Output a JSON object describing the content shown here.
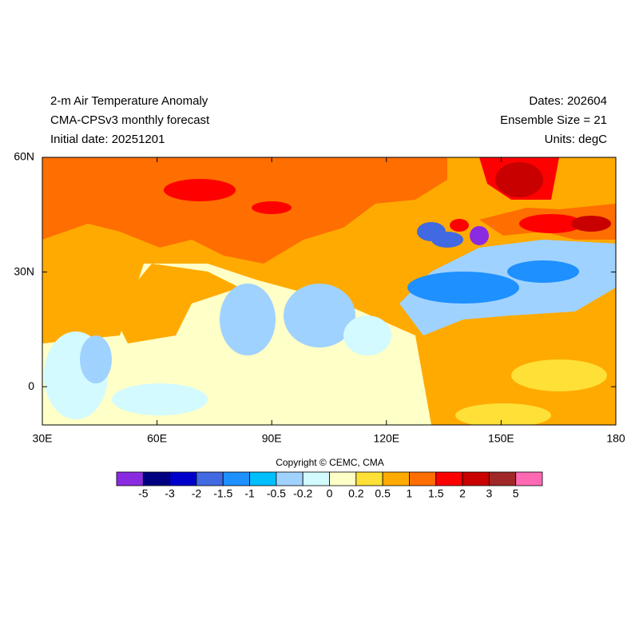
{
  "header": {
    "left": [
      "2-m Air Temperature Anomaly",
      "CMA-CPSv3 monthly forecast",
      "Initial date: 20251201"
    ],
    "right": [
      "Dates: 202604",
      "Ensemble Size = 21",
      "Units: degC"
    ]
  },
  "map": {
    "xlim": [
      30,
      180
    ],
    "ylim": [
      -10,
      60
    ],
    "xticks": [
      {
        "value": 30,
        "label": "30E"
      },
      {
        "value": 60,
        "label": "60E"
      },
      {
        "value": 90,
        "label": "90E"
      },
      {
        "value": 120,
        "label": "120E"
      },
      {
        "value": 150,
        "label": "150E"
      },
      180
    ],
    "yticks": [
      {
        "value": 60,
        "label": "60N"
      },
      {
        "value": 30,
        "label": "30N"
      },
      0
    ]
  },
  "copyright": "Copyright © CEMC, CMA",
  "colorbar": {
    "levels": [
      -5,
      -3,
      -2,
      -1.5,
      -1,
      -0.5,
      -0.2,
      0,
      0.2,
      0.5,
      1,
      1.5,
      2,
      3,
      5
    ],
    "colors": [
      "#8a2be2",
      "#000080",
      "#0000cd",
      "#4169e1",
      "#1e90ff",
      "#00bfff",
      "#a0d2ff",
      "#d2faff",
      "#ffffc8",
      "#ffe036",
      "#ffaa00",
      "#ff6e00",
      "#ff0000",
      "#c80000",
      "#a02828",
      "#ff69b4"
    ]
  }
}
